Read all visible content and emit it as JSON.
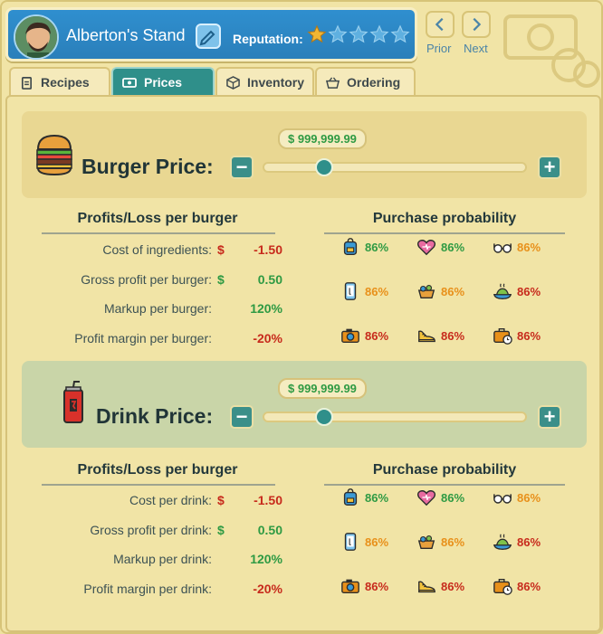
{
  "header": {
    "stand_name": "Alberton's Stand",
    "reputation_label": "Reputation:",
    "reputation_stars": 1,
    "reputation_max": 5,
    "prior_label": "Prior",
    "next_label": "Next"
  },
  "tabs": [
    {
      "label": "Recipes",
      "icon": "clipboard-icon",
      "active": false
    },
    {
      "label": "Prices",
      "icon": "money-icon",
      "active": true
    },
    {
      "label": "Inventory",
      "icon": "box-icon",
      "active": false
    },
    {
      "label": "Ordering",
      "icon": "basket-icon",
      "active": false
    }
  ],
  "burger": {
    "title": "Burger Price:",
    "price": "$ 999,999.99",
    "profits_heading": "Profits/Loss per burger",
    "rows": [
      {
        "label": "Cost of ingredients:",
        "dollar": "$",
        "value": "-1.50",
        "tone": "neg"
      },
      {
        "label": "Gross profit per burger:",
        "dollar": "$",
        "value": "0.50",
        "tone": "pos"
      },
      {
        "label": "Markup per burger:",
        "dollar": "",
        "value": "120%",
        "tone": "pos"
      },
      {
        "label": "Profit margin per burger:",
        "dollar": "",
        "value": "-20%",
        "tone": "neg"
      }
    ],
    "prob_heading": "Purchase probability",
    "probs": [
      {
        "icon": "backpack-icon",
        "value": "86%",
        "tone": "pos"
      },
      {
        "icon": "heart-icon",
        "value": "86%",
        "tone": "pos"
      },
      {
        "icon": "glasses-icon",
        "value": "86%",
        "tone": "mid"
      },
      {
        "icon": "phone-icon",
        "value": "86%",
        "tone": "mid"
      },
      {
        "icon": "basket-icon",
        "value": "86%",
        "tone": "mid"
      },
      {
        "icon": "meal-icon",
        "value": "86%",
        "tone": "neg"
      },
      {
        "icon": "camera-icon",
        "value": "86%",
        "tone": "neg"
      },
      {
        "icon": "shoe-icon",
        "value": "86%",
        "tone": "neg"
      },
      {
        "icon": "briefcase-icon",
        "value": "86%",
        "tone": "neg"
      }
    ]
  },
  "drink": {
    "title": "Drink Price:",
    "price": "$ 999,999.99",
    "profits_heading": "Profits/Loss per burger",
    "rows": [
      {
        "label": "Cost per drink:",
        "dollar": "$",
        "value": "-1.50",
        "tone": "neg"
      },
      {
        "label": "Gross profit per drink:",
        "dollar": "$",
        "value": "0.50",
        "tone": "pos"
      },
      {
        "label": "Markup per drink:",
        "dollar": "",
        "value": "120%",
        "tone": "pos"
      },
      {
        "label": "Profit margin per drink:",
        "dollar": "",
        "value": "-20%",
        "tone": "neg"
      }
    ],
    "prob_heading": "Purchase probability",
    "probs": [
      {
        "icon": "backpack-icon",
        "value": "86%",
        "tone": "pos"
      },
      {
        "icon": "heart-icon",
        "value": "86%",
        "tone": "pos"
      },
      {
        "icon": "glasses-icon",
        "value": "86%",
        "tone": "mid"
      },
      {
        "icon": "phone-icon",
        "value": "86%",
        "tone": "mid"
      },
      {
        "icon": "basket-icon",
        "value": "86%",
        "tone": "mid"
      },
      {
        "icon": "meal-icon",
        "value": "86%",
        "tone": "neg"
      },
      {
        "icon": "camera-icon",
        "value": "86%",
        "tone": "neg"
      },
      {
        "icon": "shoe-icon",
        "value": "86%",
        "tone": "neg"
      },
      {
        "icon": "briefcase-icon",
        "value": "86%",
        "tone": "neg"
      }
    ]
  },
  "colors": {
    "pos": "#2e9a43",
    "neg": "#c72a1c",
    "mid": "#e8901a",
    "accent": "#2f8f8a"
  }
}
